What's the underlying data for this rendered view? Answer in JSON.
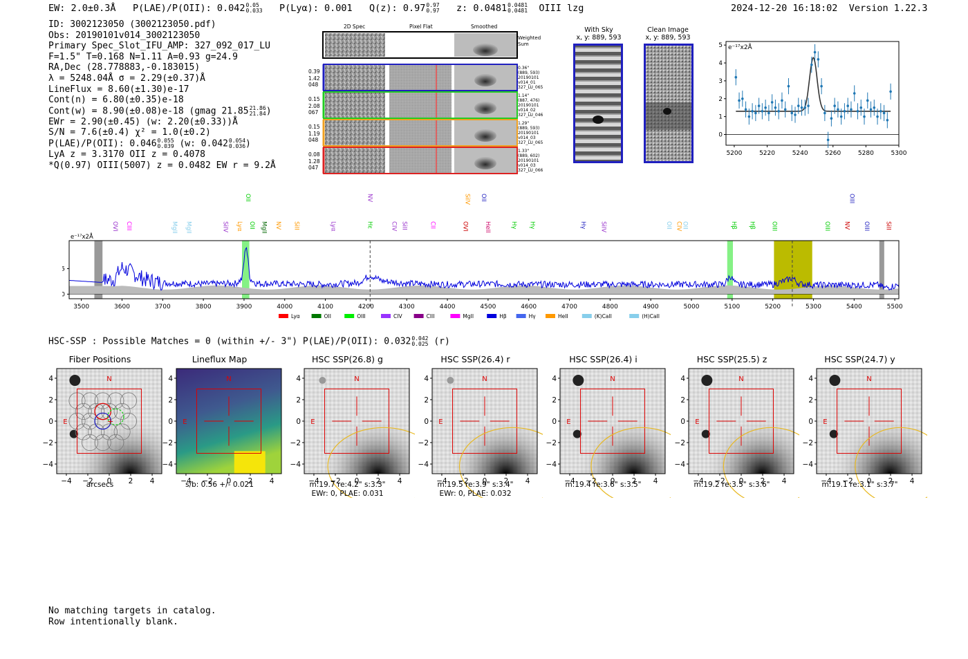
{
  "header": {
    "ew": "EW: 2.0±0.3Å",
    "plae_label": "P(LAE)/P(OII): 0.042",
    "plae_hi": "0.05",
    "plae_lo": "0.033",
    "plya": "P(Lyα): 0.001",
    "qz_label": "Q(z): 0.97",
    "qz_hi": "0.97",
    "qz_lo": "0.97",
    "z_label": "z: 0.0481",
    "z_hi": "0.0481",
    "z_lo": "0.0481",
    "line_tag": "OIII  lzg",
    "timestamp": "2024-12-20 16:18:02",
    "version": "Version 1.22.3"
  },
  "info": {
    "l1": "ID: 3002123050 (3002123050.pdf)",
    "l2": "Obs: 20190101v014_3002123050",
    "l3": "Primary Spec_Slot_IFU_AMP: 327_092_017_LU",
    "l4": "F=1.5\"  T=0.168  N=1.11  A=0.93  g=24.9",
    "l5": "RA,Dec (28.778883,-0.183015)",
    "l6": "λ = 5248.04Å  σ = 2.29(±0.37)Å",
    "l7": "LineFlux = 8.60(±1.30)e-17",
    "l8": "Cont(n) = 6.80(±0.35)e-18",
    "l9a": "Cont(w) = 8.90(±0.08)e-18 (gmag 21.85",
    "l9_hi": "21.86",
    "l9_lo": "21.84",
    "l9b": ")",
    "l10": "EWr = 2.90(±0.45) (w: 2.20(±0.33))Å",
    "l11": "S/N = 7.6(±0.4)  χ² = 1.0(±0.2)",
    "l12a": "P(LAE)/P(OII): 0.046",
    "l12_hi": "0.055",
    "l12_lo": "0.039",
    "l12b": "(w: 0.042",
    "l12_hi2": "0.054",
    "l12_lo2": "0.036",
    "l12c": ")",
    "l13": "LyA z = 3.3170  OII z = 0.4078",
    "l14": "*Q(0.97) OIII(5007) z = 0.0482  EW r = 9.2Å"
  },
  "cutouts": {
    "col1": "2D Spec",
    "col2": "Pixel Flat",
    "col3": "Smoothed",
    "weighted_sum": "Weighted Sum",
    "rows": [
      {
        "weights": [
          "0.39",
          "1.42",
          "048"
        ],
        "meta": [
          "0.36\"",
          "(889, 593)",
          "20190101",
          "v014_01",
          "327_LU_065"
        ],
        "color": "#1f1fbf"
      },
      {
        "weights": [
          "0.15",
          "2.08",
          "067"
        ],
        "meta": [
          "1.14\"",
          "(887, 476)",
          "20190101",
          "v014_02",
          "327_LU_046"
        ],
        "color": "#22cc22"
      },
      {
        "weights": [
          "0.15",
          "1.19",
          "048"
        ],
        "meta": [
          "1.29\"",
          "(889, 593)",
          "20190101",
          "v014_03",
          "327_LU_065"
        ],
        "color": "#f0a020"
      },
      {
        "weights": [
          "0.08",
          "1.28",
          "047"
        ],
        "meta": [
          "1.33\"",
          "(889, 602)",
          "20190101",
          "v014_03",
          "327_LU_066"
        ],
        "color": "#dd2222"
      }
    ]
  },
  "sky": {
    "with_sky_title": "With Sky",
    "with_sky_xy": "x, y: 889, 593",
    "clean_title": "Clean Image",
    "clean_xy": "x, y: 889, 593"
  },
  "chart_data": [
    {
      "type": "scatter",
      "title": "",
      "unit_label": "e⁻¹⁷x2Å",
      "xlim": [
        5195,
        5300
      ],
      "ylim": [
        -0.6,
        5.2
      ],
      "xticks": [
        5200,
        5220,
        5240,
        5260,
        5280,
        5300
      ],
      "yticks": [
        0,
        1,
        2,
        3,
        4,
        5
      ],
      "points_x": [
        5201,
        5203,
        5205,
        5207,
        5209,
        5211,
        5213,
        5215,
        5217,
        5219,
        5221,
        5223,
        5225,
        5227,
        5229,
        5231,
        5233,
        5235,
        5237,
        5239,
        5241,
        5243,
        5245,
        5247,
        5249,
        5251,
        5253,
        5255,
        5257,
        5259,
        5261,
        5263,
        5265,
        5267,
        5269,
        5271,
        5273,
        5275,
        5277,
        5279,
        5281,
        5283,
        5285,
        5287,
        5289,
        5291,
        5293,
        5295
      ],
      "points_y": [
        3.2,
        1.9,
        2.0,
        1.4,
        1.0,
        1.3,
        1.2,
        1.6,
        1.3,
        1.5,
        1.2,
        1.8,
        1.5,
        1.3,
        1.9,
        1.4,
        2.7,
        1.2,
        1.1,
        1.6,
        1.5,
        1.5,
        1.6,
        3.9,
        4.6,
        4.2,
        2.7,
        1.2,
        -0.3,
        0.9,
        1.6,
        1.4,
        1.0,
        1.3,
        1.6,
        1.4,
        2.3,
        1.3,
        1.5,
        1.0,
        1.9,
        1.4,
        1.5,
        1.0,
        1.3,
        1.2,
        0.8,
        2.4
      ],
      "errors": 0.45,
      "fit": {
        "continuum": 1.3,
        "amplitude": 3.0,
        "center": 5248.04,
        "sigma": 2.29
      }
    },
    {
      "type": "line",
      "title": "",
      "unit_label": "e⁻¹⁷x2Å",
      "xlim": [
        3470,
        5510
      ],
      "ylim": [
        -0.9,
        10.5
      ],
      "xticks": [
        3500,
        3600,
        3700,
        3800,
        3900,
        4000,
        4100,
        4200,
        4300,
        4400,
        4500,
        4600,
        4700,
        4800,
        4900,
        5000,
        5100,
        5200,
        5300,
        5400,
        5500
      ],
      "yticks": [
        0,
        5
      ],
      "series": [
        {
          "name": "spectrum",
          "color": "#0000dd"
        },
        {
          "name": "error",
          "color": "#aaaaaa"
        }
      ],
      "spectrum_x": [
        3470,
        3550,
        3560,
        3580,
        3600,
        3620,
        3640,
        3660,
        3700,
        3800,
        3880,
        3895,
        3905,
        3915,
        3930,
        4000,
        4100,
        4180,
        4210,
        4240,
        4300,
        4400,
        4500,
        4600,
        4700,
        4800,
        4900,
        5000,
        5080,
        5095,
        5110,
        5200,
        5230,
        5248,
        5265,
        5300,
        5400,
        5460,
        5475,
        5510
      ],
      "spectrum_y": [
        2.7,
        2.3,
        2.8,
        2.9,
        5.2,
        4.5,
        3.5,
        2.8,
        2.2,
        2.0,
        2.1,
        3.0,
        10.0,
        3.0,
        2.1,
        2.0,
        1.9,
        2.2,
        3.7,
        2.6,
        2.1,
        1.9,
        2.0,
        1.9,
        1.9,
        1.9,
        1.9,
        1.9,
        1.9,
        3.6,
        1.9,
        1.9,
        2.6,
        3.2,
        2.0,
        1.8,
        1.8,
        1.8,
        1.2,
        1.8
      ],
      "labels": [
        {
          "name": "OVI",
          "x": 3574,
          "color": "#9933cc"
        },
        {
          "name": "CIII",
          "x": 3608,
          "color": "#ff00ff"
        },
        {
          "name": "MgII",
          "x": 3720,
          "color": "#87ceeb"
        },
        {
          "name": "MgII",
          "x": 3755,
          "color": "#87ceeb"
        },
        {
          "name": "SiIV",
          "x": 3845,
          "color": "#9933cc"
        },
        {
          "name": "Lyα",
          "x": 3880,
          "color": "#ff9900"
        },
        {
          "name": "OII",
          "x": 3900,
          "color": "#00cc00"
        },
        {
          "name": "OII",
          "x": 3910,
          "color": "#00cc00"
        },
        {
          "name": "MgII",
          "x": 3940,
          "color": "#006600"
        },
        {
          "name": "NV",
          "x": 3975,
          "color": "#ff9900"
        },
        {
          "name": "SiII",
          "x": 4020,
          "color": "#ff9900"
        },
        {
          "name": "Lyα",
          "x": 4110,
          "color": "#9933cc"
        },
        {
          "name": "NV",
          "x": 4200,
          "color": "#9933cc"
        },
        {
          "name": "Hε",
          "x": 4200,
          "color": "#00cc00"
        },
        {
          "name": "CIV",
          "x": 4260,
          "color": "#9933cc"
        },
        {
          "name": "SiII",
          "x": 4285,
          "color": "#9933cc"
        },
        {
          "name": "CII",
          "x": 4355,
          "color": "#ff00ff"
        },
        {
          "name": "OVI",
          "x": 4435,
          "color": "#cc0000"
        },
        {
          "name": "SiIV",
          "x": 4440,
          "color": "#ff9900"
        },
        {
          "name": "OII",
          "x": 4480,
          "color": "#1f1fbf"
        },
        {
          "name": "HeII",
          "x": 4490,
          "color": "#cc0066"
        },
        {
          "name": "Hγ",
          "x": 4555,
          "color": "#00cc00"
        },
        {
          "name": "Hγ",
          "x": 4600,
          "color": "#00cc00"
        },
        {
          "name": "Hγ",
          "x": 4725,
          "color": "#1f1fbf"
        },
        {
          "name": "SiIV",
          "x": 4775,
          "color": "#9933cc"
        },
        {
          "name": "OII",
          "x": 4935,
          "color": "#87ceeb"
        },
        {
          "name": "CIV",
          "x": 4960,
          "color": "#ff9900"
        },
        {
          "name": "OII",
          "x": 4975,
          "color": "#87ceeb"
        },
        {
          "name": "Hβ",
          "x": 5095,
          "color": "#00cc00"
        },
        {
          "name": "Hβ",
          "x": 5140,
          "color": "#00cc00"
        },
        {
          "name": "OIII",
          "x": 5195,
          "color": "#00cc00"
        },
        {
          "name": "OIII",
          "x": 5325,
          "color": "#00cc00"
        },
        {
          "name": "NV",
          "x": 5373,
          "color": "#cc0000"
        },
        {
          "name": "OIII",
          "x": 5385,
          "color": "#1f1fbf"
        },
        {
          "name": "OIII",
          "x": 5422,
          "color": "#1f1fbf"
        },
        {
          "name": "SiII",
          "x": 5475,
          "color": "#cc0000"
        }
      ],
      "legend": [
        {
          "name": "Lyα",
          "color": "#ff0000"
        },
        {
          "name": "OII",
          "color": "#007700"
        },
        {
          "name": "OIII",
          "color": "#00ee00"
        },
        {
          "name": "CIV",
          "color": "#9933ff"
        },
        {
          "name": "CIII",
          "color": "#880088"
        },
        {
          "name": "MgII",
          "color": "#ff00ff"
        },
        {
          "name": "Hβ",
          "color": "#0000dd"
        },
        {
          "name": "Hγ",
          "color": "#4466ee"
        },
        {
          "name": "HeII",
          "color": "#ff9900"
        },
        {
          "name": "(K)CaII",
          "color": "#87ceeb"
        },
        {
          "name": "(H)CaII",
          "color": "#87ceeb"
        }
      ]
    }
  ],
  "hsc": {
    "summary_a": "HSC-SSP : Possible Matches = 0 (within +/- 3\")  P(LAE)/P(OII): 0.032",
    "summary_hi": "0.042",
    "summary_lo": "0.025",
    "summary_b": "(r)",
    "N": "N",
    "E": "E",
    "ticks": [
      "−4",
      "−2",
      "0",
      "2",
      "4"
    ],
    "panels": [
      {
        "title": "Fiber Positions",
        "cap1": "arcsecs",
        "cap2": ""
      },
      {
        "title": "Lineflux Map",
        "cap1": "s/b: 0.56 +/- 0.021",
        "cap2": ""
      },
      {
        "title": "HSC SSP(26.8) g",
        "cap1": "m:19.7  re:4.2\"  s:3.3\"",
        "cap2": "EWr: 0, PLAE: 0.031"
      },
      {
        "title": "HSC SSP(26.4) r",
        "cap1": "m:19.5  re:3.9\"  s:3.4\"",
        "cap2": "EWr: 0, PLAE: 0.032"
      },
      {
        "title": "HSC SSP(26.4) i",
        "cap1": "m:19.4  re:3.6\"  s:3.5\"",
        "cap2": ""
      },
      {
        "title": "HSC SSP(25.5) z",
        "cap1": "m:19.2  re:3.5\"  s:3.6\"",
        "cap2": ""
      },
      {
        "title": "HSC SSP(24.7) y",
        "cap1": "m:19.1  re:3.1\"  s:3.7\"",
        "cap2": ""
      }
    ]
  },
  "footer": {
    "l1": "No matching targets in catalog.",
    "l2": "Row intentionally blank."
  }
}
